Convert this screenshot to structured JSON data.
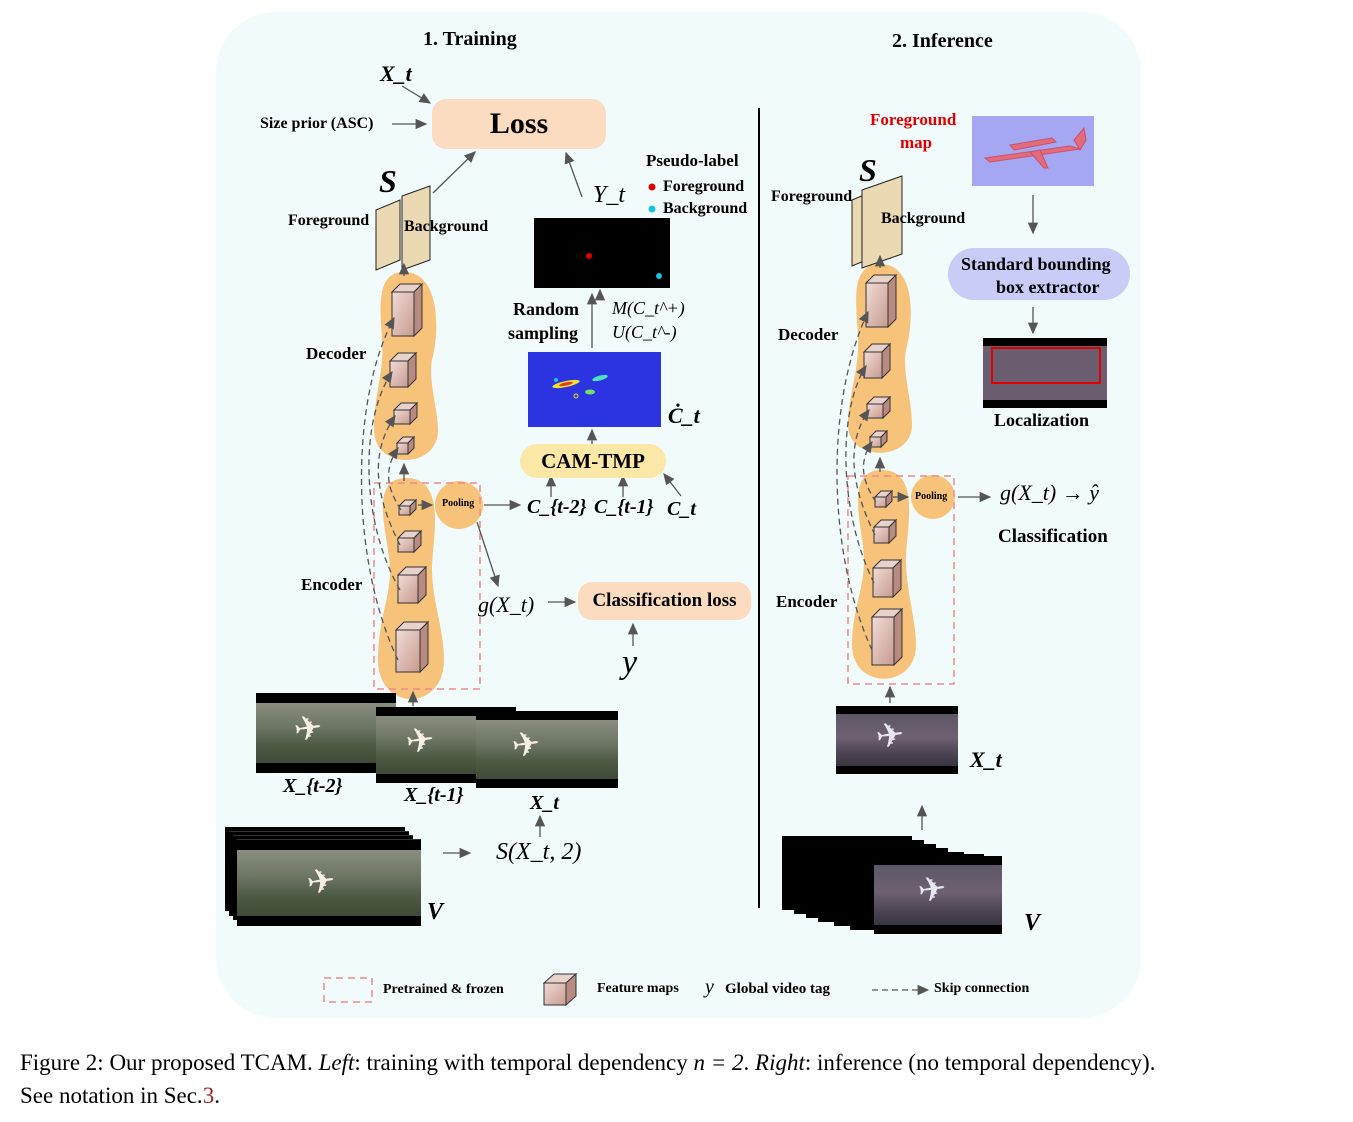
{
  "training": {
    "title": "1. Training",
    "x_t_top": "X_t",
    "size_prior": "Size prior (ASC)",
    "loss": "Loss",
    "s_label": "S",
    "foreground": "Foreground",
    "background": "Background",
    "y_t": "Y_t",
    "pseudo_label": {
      "title": "Pseudo-label",
      "foreground": "Foreground",
      "background": "Background",
      "foreground_color": "#e00000",
      "background_color": "#19c3e6"
    },
    "random_sampling": [
      "Random",
      "sampling"
    ],
    "sampling_m": "M(C_t^+)",
    "sampling_u": "U(C_t^-)",
    "c_dot_t": "Ċ_t",
    "decoder": "Decoder",
    "encoder": "Encoder",
    "pooling": "Pooling",
    "cam_tmp": "CAM-TMP",
    "c_tm2": "C_{t-2}",
    "c_tm1": "C_{t-1}",
    "c_t": "C_t",
    "g_xt": "g(X_t)",
    "classification_loss": "Classification loss",
    "y": "y",
    "frames": [
      "X_{t-2}",
      "X_{t-1}",
      "X_t"
    ],
    "sampler": "S(X_t, 2)",
    "video": "V"
  },
  "inference": {
    "title": "2. Inference",
    "foreground_map": [
      "Foreground",
      "map"
    ],
    "s_label": "S",
    "foreground": "Foreground",
    "background": "Background",
    "bbox_extractor": [
      "Standard bounding",
      "box extractor"
    ],
    "localization": "Localization",
    "decoder": "Decoder",
    "encoder": "Encoder",
    "pooling": "Pooling",
    "g_xt": "g(X_t) → ŷ",
    "classification": "Classification",
    "x_t": "X_t",
    "video": "V"
  },
  "legend": {
    "frozen": "Pretrained & frozen",
    "feature_maps": "Feature maps",
    "y_symbol": "y",
    "global_tag": "Global video tag",
    "skip": "Skip connection"
  },
  "caption": {
    "prefix": "Figure 2: Our proposed TCAM. ",
    "left_label": "Left",
    "left_text": ": training with temporal dependency ",
    "n_eq": "n = 2",
    "mid": ". ",
    "right_label": "Right",
    "right_text": ": inference (no temporal dependency).",
    "line2_prefix": "See notation in Sec.",
    "sec_ref": "3",
    "line2_suffix": "."
  },
  "colors": {
    "panel": "#f2fbfb",
    "orange_body": "#f7c27a",
    "loss_box": "#fbdcc0",
    "cam_tmp": "#fbe7a6",
    "bbox_box": "#c8ccf7",
    "frozen_dash": "#f08a8a",
    "feature_map": "#dbbcb6"
  }
}
